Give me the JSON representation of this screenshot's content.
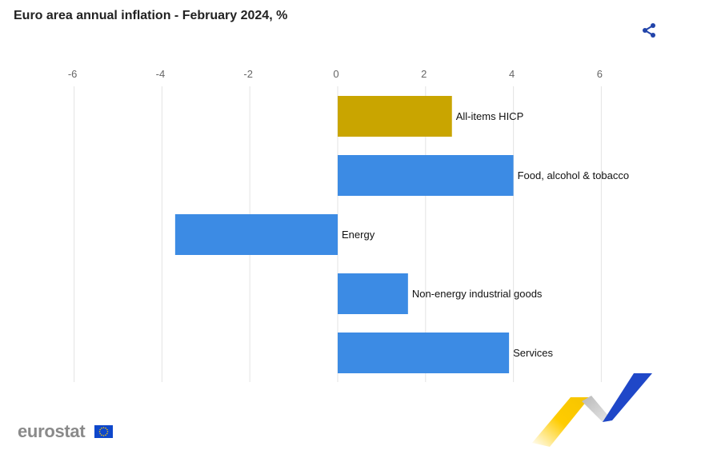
{
  "page": {
    "title": "Euro area annual inflation - February 2024, %",
    "brand": "eurostat"
  },
  "icons": {
    "share": "share-icon",
    "flag": "eu-flag-icon"
  },
  "colors": {
    "highlight": "#C9A500",
    "bar": "#3C8BE4",
    "grid": "#E3E3E3",
    "share": "#2244AA",
    "flag_bg": "#0E47CB",
    "flag_stars": "#FFCC00"
  },
  "chart_data": {
    "type": "bar",
    "orientation": "horizontal",
    "title": "Euro area annual inflation - February 2024, %",
    "xlabel": "",
    "ylabel": "",
    "xlim": [
      -6,
      7
    ],
    "ticks": [
      -6,
      -4,
      -2,
      0,
      2,
      4,
      6
    ],
    "grid": true,
    "categories": [
      "All-items HICP",
      "Food, alcohol & tobacco",
      "Energy",
      "Non-energy industrial goods",
      "Services"
    ],
    "values": [
      2.6,
      4.0,
      -3.7,
      1.6,
      3.9
    ],
    "highlight_index": 0
  }
}
